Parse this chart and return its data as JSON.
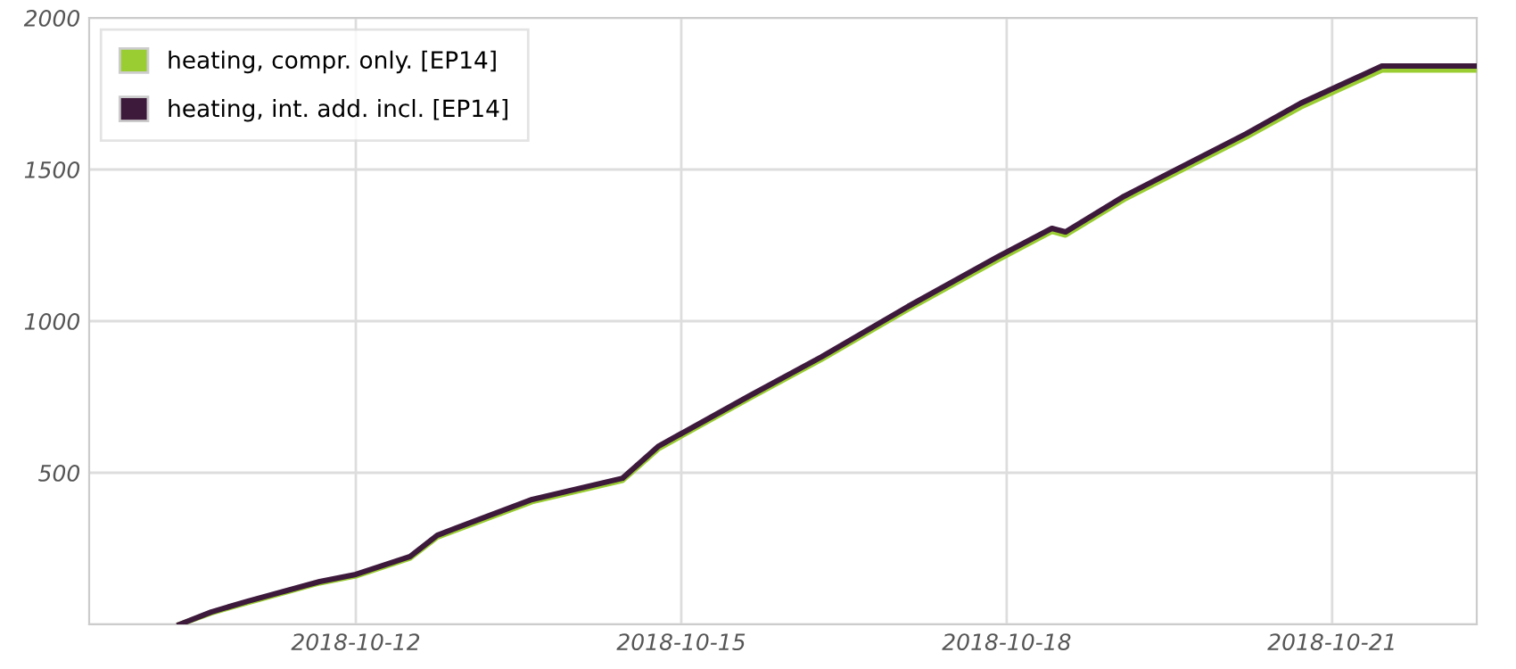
{
  "chart_data": {
    "type": "line",
    "x": [
      "2018-10-10T09:00",
      "2018-10-10T16:00",
      "2018-10-11T00:00",
      "2018-10-11T16:00",
      "2018-10-12T00:00",
      "2018-10-12T12:00",
      "2018-10-12T18:00",
      "2018-10-13T15:00",
      "2018-10-14T11:00",
      "2018-10-14T19:00",
      "2018-10-15T15:00",
      "2018-10-16T07:00",
      "2018-10-17T02:00",
      "2018-10-17T22:00",
      "2018-10-18T10:00",
      "2018-10-18T13:00",
      "2018-10-19T02:00",
      "2018-10-20T05:00",
      "2018-10-20T17:00",
      "2018-10-21T11:00",
      "2018-10-22T08:00"
    ],
    "series": [
      {
        "name": "heating, compr. only. [EP14]",
        "color": "#9acd32",
        "values": [
          0,
          38,
          72,
          137,
          160,
          219,
          288,
          405,
          475,
          580,
          745,
          874,
          1038,
          1202,
          1296,
          1284,
          1402,
          1607,
          1706,
          1828,
          1828
        ]
      },
      {
        "name": "heating, int. add. incl. [EP14]",
        "color": "#3d1a3c",
        "values": [
          0,
          41,
          76,
          141,
          165,
          224,
          294,
          412,
          482,
          588,
          753,
          882,
          1047,
          1212,
          1306,
          1294,
          1412,
          1618,
          1718,
          1841,
          1841
        ]
      }
    ],
    "xlim": [
      "2018-10-09T13:00",
      "2018-10-22T08:00"
    ],
    "xticks": [
      {
        "value": "2018-10-12",
        "label": "2018-10-12"
      },
      {
        "value": "2018-10-15",
        "label": "2018-10-15"
      },
      {
        "value": "2018-10-18",
        "label": "2018-10-18"
      },
      {
        "value": "2018-10-21",
        "label": "2018-10-21"
      }
    ],
    "ylim": [
      0,
      2000
    ],
    "yticks": [
      {
        "value": 0,
        "label": null
      },
      500,
      1000,
      1500,
      2000
    ],
    "grid": true,
    "legend": "top left",
    "line_style": "solid",
    "marker": "none"
  }
}
